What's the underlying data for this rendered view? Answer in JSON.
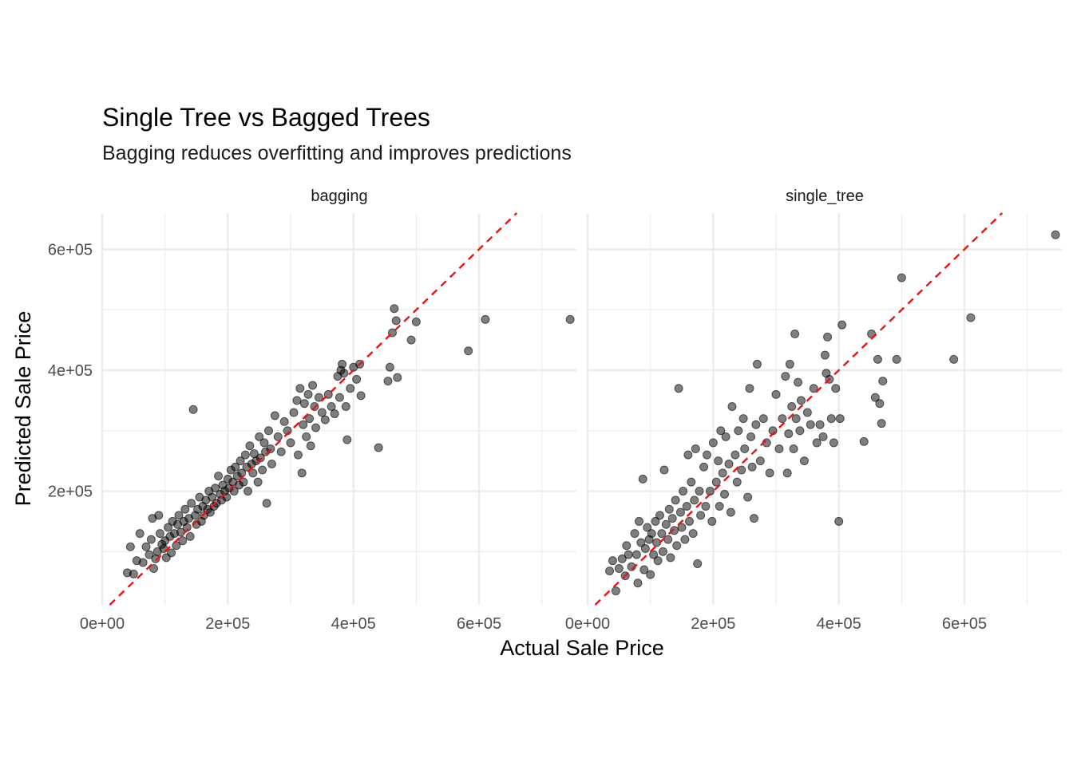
{
  "chart_data": {
    "type": "scatter",
    "title": "Single Tree vs Bagged Trees",
    "subtitle": "Bagging reduces overfitting and improves predictions",
    "xlabel": "Actual Sale Price",
    "ylabel": "Predicted Sale Price",
    "xlim": [
      0,
      755000
    ],
    "ylim": [
      12000,
      660000
    ],
    "x_ticks": [
      0,
      200000,
      400000,
      600000
    ],
    "x_tick_labels": [
      "0e+00",
      "2e+05",
      "4e+05",
      "6e+05"
    ],
    "y_ticks": [
      200000,
      400000,
      600000
    ],
    "y_tick_labels": [
      "2e+05",
      "4e+05",
      "6e+05"
    ],
    "grid": true,
    "reference_line": {
      "slope": 1,
      "intercept": 0,
      "color": "#ee1111",
      "style": "dashed"
    },
    "point_color": "#000000",
    "panels": [
      {
        "label": "bagging",
        "points": [
          [
            40000,
            65000
          ],
          [
            45000,
            108000
          ],
          [
            50000,
            63000
          ],
          [
            55000,
            85000
          ],
          [
            60000,
            130000
          ],
          [
            65000,
            82000
          ],
          [
            70000,
            108000
          ],
          [
            75000,
            95000
          ],
          [
            78000,
            120000
          ],
          [
            80000,
            155000
          ],
          [
            82000,
            72000
          ],
          [
            85000,
            88000
          ],
          [
            88000,
            100000
          ],
          [
            90000,
            160000
          ],
          [
            92000,
            130000
          ],
          [
            95000,
            112000
          ],
          [
            98000,
            105000
          ],
          [
            100000,
            118000
          ],
          [
            102000,
            90000
          ],
          [
            105000,
            140000
          ],
          [
            108000,
            125000
          ],
          [
            110000,
            98000
          ],
          [
            112000,
            150000
          ],
          [
            115000,
            130000
          ],
          [
            118000,
            110000
          ],
          [
            120000,
            145000
          ],
          [
            122000,
            160000
          ],
          [
            125000,
            132000
          ],
          [
            128000,
            118000
          ],
          [
            130000,
            150000
          ],
          [
            132000,
            170000
          ],
          [
            135000,
            140000
          ],
          [
            138000,
            155000
          ],
          [
            140000,
            125000
          ],
          [
            142000,
            180000
          ],
          [
            145000,
            335000
          ],
          [
            148000,
            160000
          ],
          [
            150000,
            145000
          ],
          [
            152000,
            170000
          ],
          [
            155000,
            190000
          ],
          [
            158000,
            150000
          ],
          [
            160000,
            175000
          ],
          [
            162000,
            160000
          ],
          [
            165000,
            185000
          ],
          [
            168000,
            170000
          ],
          [
            170000,
            200000
          ],
          [
            172000,
            165000
          ],
          [
            175000,
            190000
          ],
          [
            178000,
            175000
          ],
          [
            180000,
            205000
          ],
          [
            182000,
            180000
          ],
          [
            185000,
            225000
          ],
          [
            188000,
            195000
          ],
          [
            190000,
            185000
          ],
          [
            192000,
            210000
          ],
          [
            195000,
            200000
          ],
          [
            198000,
            190000
          ],
          [
            200000,
            220000
          ],
          [
            202000,
            205000
          ],
          [
            205000,
            235000
          ],
          [
            208000,
            215000
          ],
          [
            210000,
            200000
          ],
          [
            212000,
            240000
          ],
          [
            215000,
            225000
          ],
          [
            218000,
            210000
          ],
          [
            220000,
            250000
          ],
          [
            222000,
            230000
          ],
          [
            225000,
            215000
          ],
          [
            228000,
            260000
          ],
          [
            230000,
            240000
          ],
          [
            232000,
            200000
          ],
          [
            235000,
            275000
          ],
          [
            238000,
            245000
          ],
          [
            240000,
            230000
          ],
          [
            242000,
            262000
          ],
          [
            245000,
            250000
          ],
          [
            248000,
            215000
          ],
          [
            250000,
            290000
          ],
          [
            252000,
            255000
          ],
          [
            255000,
            235000
          ],
          [
            258000,
            280000
          ],
          [
            260000,
            265000
          ],
          [
            262000,
            180000
          ],
          [
            265000,
            300000
          ],
          [
            268000,
            270000
          ],
          [
            270000,
            245000
          ],
          [
            275000,
            325000
          ],
          [
            280000,
            290000
          ],
          [
            285000,
            265000
          ],
          [
            290000,
            315000
          ],
          [
            295000,
            300000
          ],
          [
            300000,
            280000
          ],
          [
            305000,
            330000
          ],
          [
            310000,
            350000
          ],
          [
            312000,
            260000
          ],
          [
            315000,
            370000
          ],
          [
            318000,
            230000
          ],
          [
            320000,
            310000
          ],
          [
            322000,
            345000
          ],
          [
            325000,
            290000
          ],
          [
            328000,
            360000
          ],
          [
            330000,
            320000
          ],
          [
            332000,
            275000
          ],
          [
            335000,
            375000
          ],
          [
            338000,
            340000
          ],
          [
            340000,
            305000
          ],
          [
            345000,
            355000
          ],
          [
            350000,
            330000
          ],
          [
            355000,
            318000
          ],
          [
            360000,
            360000
          ],
          [
            365000,
            340000
          ],
          [
            370000,
            328000
          ],
          [
            375000,
            390000
          ],
          [
            378000,
            355000
          ],
          [
            380000,
            400000
          ],
          [
            382000,
            410000
          ],
          [
            385000,
            395000
          ],
          [
            388000,
            340000
          ],
          [
            390000,
            285000
          ],
          [
            395000,
            370000
          ],
          [
            400000,
            405000
          ],
          [
            405000,
            385000
          ],
          [
            410000,
            410000
          ],
          [
            412000,
            358000
          ],
          [
            440000,
            272000
          ],
          [
            455000,
            382000
          ],
          [
            458000,
            405000
          ],
          [
            462000,
            462000
          ],
          [
            465000,
            502000
          ],
          [
            468000,
            482000
          ],
          [
            470000,
            388000
          ],
          [
            492000,
            450000
          ],
          [
            500000,
            480000
          ],
          [
            583000,
            432000
          ],
          [
            610000,
            484000
          ],
          [
            745000,
            484000
          ]
        ]
      },
      {
        "label": "single_tree",
        "points": [
          [
            35000,
            68000
          ],
          [
            40000,
            85000
          ],
          [
            45000,
            35000
          ],
          [
            50000,
            72000
          ],
          [
            55000,
            88000
          ],
          [
            60000,
            60000
          ],
          [
            62000,
            110000
          ],
          [
            65000,
            95000
          ],
          [
            70000,
            75000
          ],
          [
            75000,
            130000
          ],
          [
            78000,
            95000
          ],
          [
            80000,
            48000
          ],
          [
            82000,
            150000
          ],
          [
            85000,
            115000
          ],
          [
            88000,
            220000
          ],
          [
            90000,
            70000
          ],
          [
            92000,
            105000
          ],
          [
            95000,
            140000
          ],
          [
            98000,
            120000
          ],
          [
            100000,
            62000
          ],
          [
            102000,
            130000
          ],
          [
            105000,
            95000
          ],
          [
            108000,
            150000
          ],
          [
            110000,
            115000
          ],
          [
            112000,
            85000
          ],
          [
            115000,
            160000
          ],
          [
            118000,
            130000
          ],
          [
            120000,
            100000
          ],
          [
            122000,
            235000
          ],
          [
            125000,
            145000
          ],
          [
            128000,
            120000
          ],
          [
            130000,
            170000
          ],
          [
            132000,
            90000
          ],
          [
            135000,
            155000
          ],
          [
            138000,
            135000
          ],
          [
            140000,
            185000
          ],
          [
            142000,
            110000
          ],
          [
            145000,
            370000
          ],
          [
            148000,
            165000
          ],
          [
            150000,
            140000
          ],
          [
            152000,
            200000
          ],
          [
            155000,
            120000
          ],
          [
            158000,
            175000
          ],
          [
            160000,
            260000
          ],
          [
            162000,
            150000
          ],
          [
            165000,
            215000
          ],
          [
            168000,
            130000
          ],
          [
            170000,
            185000
          ],
          [
            172000,
            270000
          ],
          [
            175000,
            80000
          ],
          [
            178000,
            200000
          ],
          [
            180000,
            160000
          ],
          [
            185000,
            240000
          ],
          [
            188000,
            175000
          ],
          [
            190000,
            260000
          ],
          [
            195000,
            200000
          ],
          [
            198000,
            150000
          ],
          [
            200000,
            280000
          ],
          [
            205000,
            215000
          ],
          [
            208000,
            250000
          ],
          [
            210000,
            175000
          ],
          [
            212000,
            300000
          ],
          [
            215000,
            230000
          ],
          [
            218000,
            195000
          ],
          [
            220000,
            290000
          ],
          [
            225000,
            245000
          ],
          [
            228000,
            165000
          ],
          [
            230000,
            340000
          ],
          [
            235000,
            260000
          ],
          [
            238000,
            215000
          ],
          [
            240000,
            300000
          ],
          [
            245000,
            235000
          ],
          [
            248000,
            320000
          ],
          [
            250000,
            270000
          ],
          [
            255000,
            190000
          ],
          [
            258000,
            370000
          ],
          [
            260000,
            290000
          ],
          [
            262000,
            240000
          ],
          [
            265000,
            155000
          ],
          [
            268000,
            310000
          ],
          [
            270000,
            410000
          ],
          [
            275000,
            250000
          ],
          [
            280000,
            320000
          ],
          [
            285000,
            280000
          ],
          [
            290000,
            230000
          ],
          [
            295000,
            300000
          ],
          [
            300000,
            360000
          ],
          [
            305000,
            270000
          ],
          [
            310000,
            320000
          ],
          [
            315000,
            390000
          ],
          [
            318000,
            230000
          ],
          [
            320000,
            295000
          ],
          [
            322000,
            410000
          ],
          [
            325000,
            340000
          ],
          [
            328000,
            270000
          ],
          [
            330000,
            460000
          ],
          [
            332000,
            320000
          ],
          [
            335000,
            380000
          ],
          [
            338000,
            300000
          ],
          [
            340000,
            350000
          ],
          [
            345000,
            250000
          ],
          [
            350000,
            330000
          ],
          [
            355000,
            310000
          ],
          [
            360000,
            370000
          ],
          [
            365000,
            280000
          ],
          [
            370000,
            310000
          ],
          [
            375000,
            290000
          ],
          [
            378000,
            425000
          ],
          [
            380000,
            395000
          ],
          [
            382000,
            455000
          ],
          [
            385000,
            385000
          ],
          [
            388000,
            320000
          ],
          [
            392000,
            280000
          ],
          [
            395000,
            370000
          ],
          [
            400000,
            150000
          ],
          [
            402000,
            320000
          ],
          [
            405000,
            475000
          ],
          [
            440000,
            282000
          ],
          [
            452000,
            460000
          ],
          [
            458000,
            355000
          ],
          [
            462000,
            418000
          ],
          [
            465000,
            345000
          ],
          [
            468000,
            312000
          ],
          [
            470000,
            382000
          ],
          [
            492000,
            418000
          ],
          [
            500000,
            553000
          ],
          [
            583000,
            418000
          ],
          [
            610000,
            487000
          ],
          [
            745000,
            624000
          ]
        ]
      }
    ]
  }
}
